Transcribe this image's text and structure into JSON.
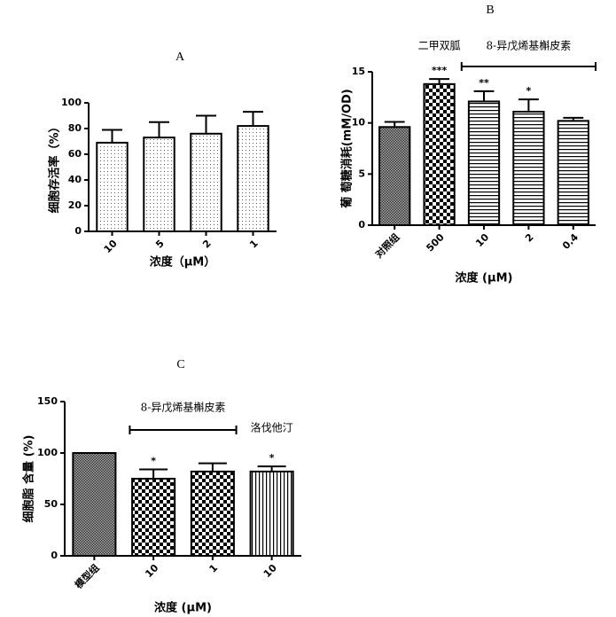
{
  "chart_data": [
    {
      "type": "bar",
      "title": "A",
      "xlabel": "浓度（μM）",
      "ylabel": "细胞存活率（%）",
      "categories": [
        "10",
        "5",
        "2",
        "1"
      ],
      "values": [
        69,
        73,
        76,
        82
      ],
      "errors": [
        10,
        12,
        14,
        11
      ],
      "patterns": [
        "dots",
        "dots",
        "dots",
        "dots"
      ],
      "color": "#000000",
      "ylim": [
        0,
        100
      ],
      "yticks": [
        0,
        20,
        40,
        60,
        80,
        100
      ]
    },
    {
      "type": "bar",
      "title": "B",
      "xlabel": "浓度 (μM)",
      "ylabel": "葡 萄糖消耗(mM/OD)",
      "categories": [
        "对照组",
        "500",
        "10",
        "2",
        "0.4"
      ],
      "values": [
        9.6,
        13.8,
        12.1,
        11.1,
        10.2
      ],
      "errors": [
        0.5,
        0.5,
        1.0,
        1.2,
        0.3
      ],
      "significance": [
        null,
        "***",
        "**",
        "*",
        null
      ],
      "groups": [
        {
          "label": "二甲双胍",
          "from": 1,
          "to": 1,
          "bracket": false
        },
        {
          "label": "8-异戊烯基槲皮素",
          "from": 2,
          "to": 4,
          "bracket": true
        }
      ],
      "patterns": [
        "crosshatch",
        "checker",
        "hlines",
        "hlines",
        "hlines"
      ],
      "color": "#000000",
      "ylim": [
        0,
        15
      ],
      "yticks": [
        0,
        5,
        10,
        15
      ]
    },
    {
      "type": "bar",
      "title": "C",
      "xlabel": "浓度 (μM)",
      "ylabel": "细胞脂 含量 (%)",
      "categories": [
        "模型组",
        "10",
        "1",
        "10"
      ],
      "values": [
        100,
        75,
        82,
        82
      ],
      "errors": [
        0,
        9,
        8,
        5
      ],
      "significance": [
        null,
        "*",
        null,
        "*"
      ],
      "groups": [
        {
          "label": "8-异戊烯基槲皮素",
          "from": 1,
          "to": 2,
          "bracket": true
        },
        {
          "label": "洛伐他汀",
          "from": 3,
          "to": 3,
          "bracket": false
        }
      ],
      "patterns": [
        "crosshatch",
        "checker",
        "checker",
        "vlines"
      ],
      "color": "#000000",
      "ylim": [
        0,
        150
      ],
      "yticks": [
        0,
        50,
        100,
        150
      ]
    }
  ]
}
